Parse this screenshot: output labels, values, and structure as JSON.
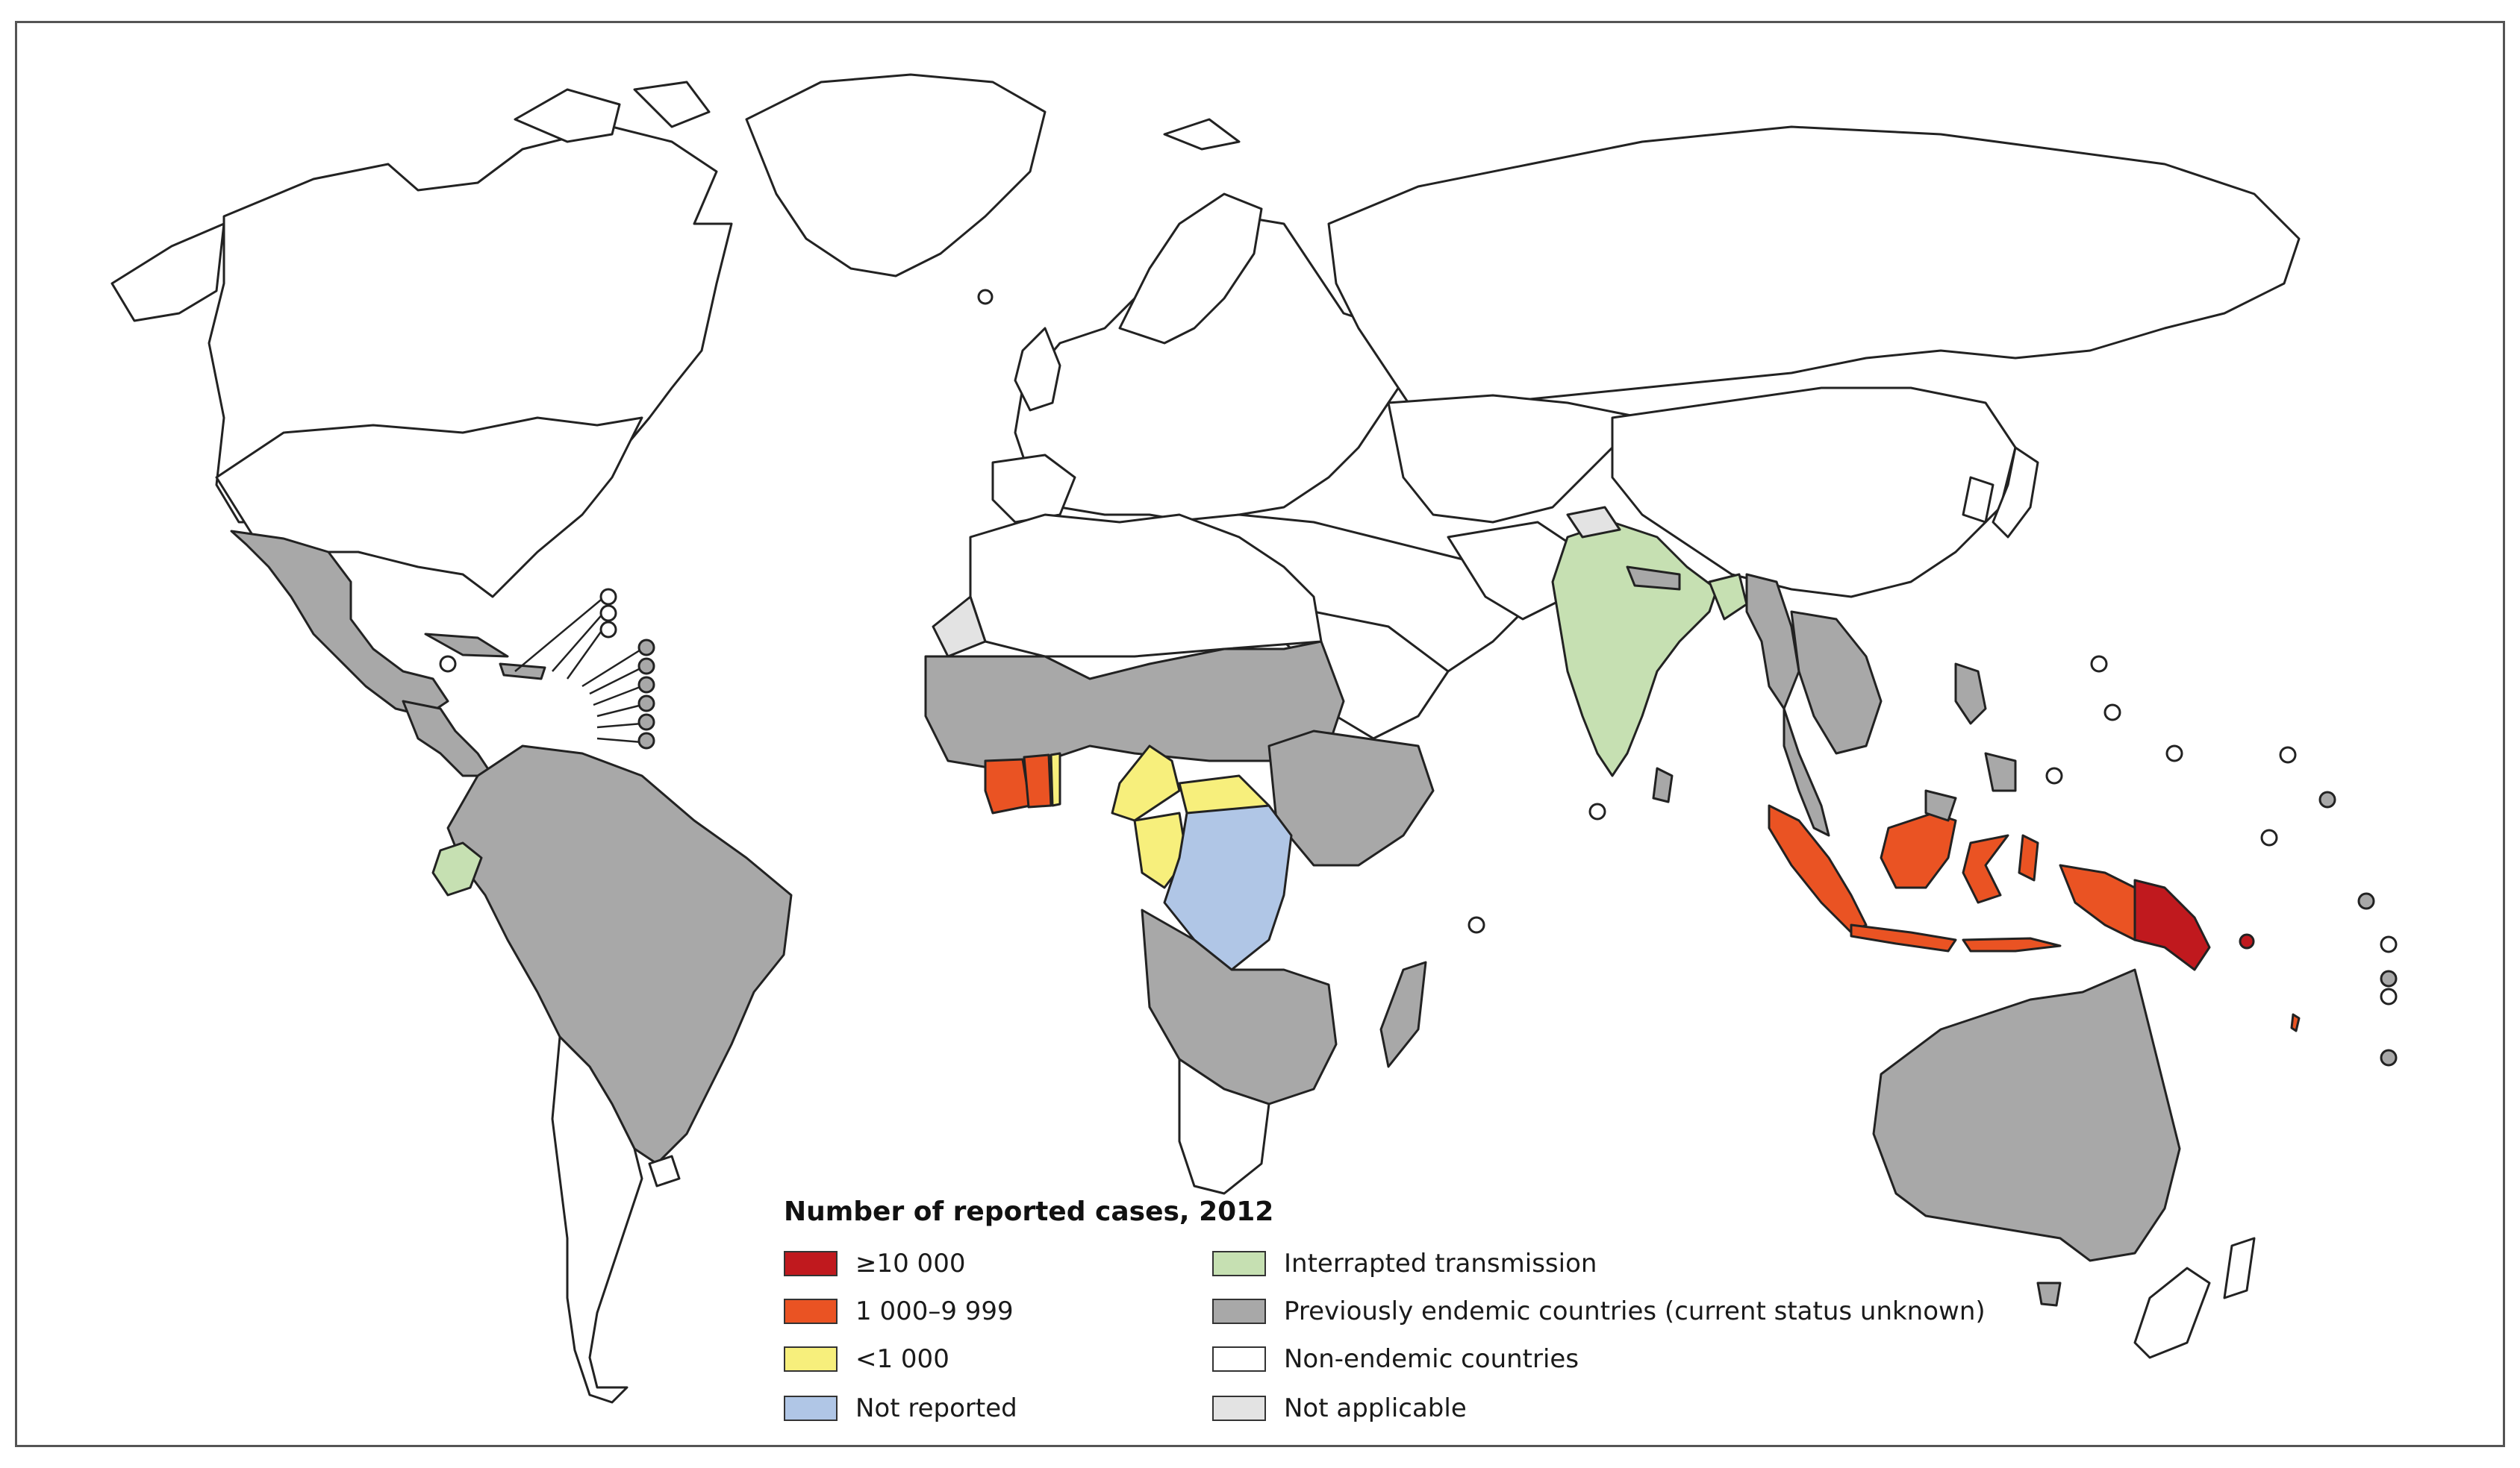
{
  "legend": {
    "title": "Number of reported cases, 2012",
    "items": [
      {
        "label": "≥10 000",
        "color": "#c0191e",
        "key": "high"
      },
      {
        "label": "1 000–9 999",
        "color": "#ea5323",
        "key": "mid"
      },
      {
        "label": "<1 000",
        "color": "#f7ef7c",
        "key": "low"
      },
      {
        "label": "Not reported",
        "color": "#b0c6e6",
        "key": "not-reported"
      },
      {
        "label": "Interrapted transmission",
        "color": "#c6e0b2",
        "key": "interrupted"
      },
      {
        "label": "Previously endemic countries (current status unknown)",
        "color": "#a8a8a8",
        "key": "previously-endemic"
      },
      {
        "label": "Non-endemic countries",
        "color": "#ffffff",
        "key": "non-endemic"
      },
      {
        "label": "Not applicable",
        "color": "#e3e3e3",
        "key": "not-applicable"
      }
    ]
  },
  "map": {
    "status_by_region": {
      "papua-new-guinea": "high",
      "indonesia": "mid",
      "cote-divoire": "mid",
      "ghana": "mid",
      "cameroon": "low",
      "central-african-republic": "low",
      "congo": "low",
      "togo": "low",
      "democratic-republic-of-congo": "not-reported",
      "india": "interrupted",
      "bangladesh": "interrupted",
      "ecuador": "interrupted",
      "latin-america": "previously-endemic",
      "sub-saharan-africa": "previously-endemic",
      "southeast-asia": "previously-endemic",
      "australia": "previously-endemic",
      "north-america": "non-endemic",
      "europe": "non-endemic",
      "northern-asia": "non-endemic",
      "western-sahara": "not-applicable",
      "kashmir": "not-applicable"
    }
  }
}
